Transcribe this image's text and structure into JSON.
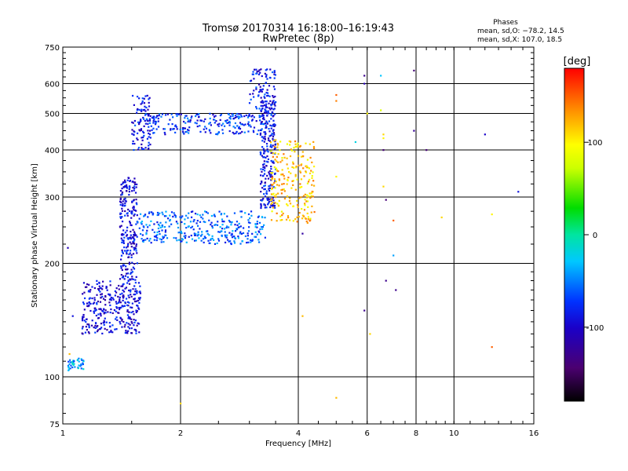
{
  "chart_data": {
    "type": "scatter",
    "title": "Tromsø 20170314 16:18:00–16:19:43",
    "subtitle": "RwPretec (8p)",
    "xlabel": "Frequency [MHz]",
    "ylabel": "Stationary phase Virtual Height [km]",
    "x_scale": "log",
    "y_scale": "log",
    "xlim": [
      1,
      16
    ],
    "ylim": [
      75,
      750
    ],
    "x_ticks": [
      1,
      2,
      4,
      6,
      8,
      10,
      16
    ],
    "y_ticks": [
      75,
      100,
      200,
      300,
      400,
      500,
      600,
      750
    ],
    "grid": true,
    "stats": {
      "heading": "Phases",
      "line_o": "mean, sd,O: −78.2, 14.5",
      "line_x": "mean, sd,X: 107.0, 18.5"
    },
    "colorbar": {
      "label": "[deg]",
      "range": [
        -180,
        180
      ],
      "ticks": [
        100,
        0,
        -100
      ]
    },
    "traces": [
      {
        "fmin": 1.12,
        "fmax": 1.58,
        "hmin": 130,
        "hmax": 180,
        "phase": -95,
        "n": 320
      },
      {
        "fmin": 1.4,
        "fmax": 1.55,
        "hmin": 180,
        "hmax": 340,
        "phase": -92,
        "n": 230
      },
      {
        "fmin": 1.5,
        "fmax": 1.68,
        "hmin": 400,
        "hmax": 560,
        "phase": -88,
        "n": 90
      },
      {
        "fmin": 1.6,
        "fmax": 3.3,
        "hmin": 440,
        "hmax": 500,
        "phase": -75,
        "n": 230
      },
      {
        "fmin": 3.0,
        "fmax": 3.5,
        "hmin": 500,
        "hmax": 660,
        "phase": -85,
        "n": 90
      },
      {
        "fmin": 1.55,
        "fmax": 3.3,
        "hmin": 225,
        "hmax": 275,
        "phase": -60,
        "n": 330
      },
      {
        "fmin": 3.2,
        "fmax": 3.5,
        "hmin": 280,
        "hmax": 560,
        "phase": -88,
        "n": 230
      },
      {
        "fmin": 3.4,
        "fmax": 4.4,
        "hmin": 255,
        "hmax": 430,
        "phase": 115,
        "n": 230
      },
      {
        "fmin": 1.03,
        "fmax": 1.13,
        "hmin": 104,
        "hmax": 112,
        "phase": -40,
        "n": 40
      }
    ],
    "points": [
      {
        "x": 1.03,
        "y": 220,
        "phase": -110
      },
      {
        "x": 1.04,
        "y": 115,
        "phase": 120
      },
      {
        "x": 1.06,
        "y": 145,
        "phase": -90
      },
      {
        "x": 2.0,
        "y": 85,
        "phase": 110
      },
      {
        "x": 4.1,
        "y": 240,
        "phase": -120
      },
      {
        "x": 4.1,
        "y": 145,
        "phase": 120
      },
      {
        "x": 5.0,
        "y": 560,
        "phase": 150
      },
      {
        "x": 5.0,
        "y": 540,
        "phase": 140
      },
      {
        "x": 5.0,
        "y": 88,
        "phase": 120
      },
      {
        "x": 5.0,
        "y": 340,
        "phase": 100
      },
      {
        "x": 5.6,
        "y": 420,
        "phase": -20
      },
      {
        "x": 5.9,
        "y": 630,
        "phase": -130
      },
      {
        "x": 5.9,
        "y": 600,
        "phase": -110
      },
      {
        "x": 5.9,
        "y": 150,
        "phase": -130
      },
      {
        "x": 6.0,
        "y": 500,
        "phase": 100
      },
      {
        "x": 6.1,
        "y": 130,
        "phase": 110
      },
      {
        "x": 6.5,
        "y": 630,
        "phase": -30
      },
      {
        "x": 6.5,
        "y": 510,
        "phase": 80
      },
      {
        "x": 6.6,
        "y": 440,
        "phase": 110
      },
      {
        "x": 6.6,
        "y": 430,
        "phase": 100
      },
      {
        "x": 6.6,
        "y": 400,
        "phase": -140
      },
      {
        "x": 6.6,
        "y": 320,
        "phase": 110
      },
      {
        "x": 6.7,
        "y": 295,
        "phase": -140
      },
      {
        "x": 6.7,
        "y": 180,
        "phase": -130
      },
      {
        "x": 7.0,
        "y": 260,
        "phase": 150
      },
      {
        "x": 7.0,
        "y": 210,
        "phase": -40
      },
      {
        "x": 7.1,
        "y": 170,
        "phase": -130
      },
      {
        "x": 7.9,
        "y": 650,
        "phase": -140
      },
      {
        "x": 7.9,
        "y": 450,
        "phase": -125
      },
      {
        "x": 8.5,
        "y": 400,
        "phase": -140
      },
      {
        "x": 9.3,
        "y": 265,
        "phase": 110
      },
      {
        "x": 12.0,
        "y": 440,
        "phase": -100
      },
      {
        "x": 12.5,
        "y": 270,
        "phase": 100
      },
      {
        "x": 12.5,
        "y": 120,
        "phase": 150
      },
      {
        "x": 14.6,
        "y": 310,
        "phase": -90
      }
    ]
  }
}
